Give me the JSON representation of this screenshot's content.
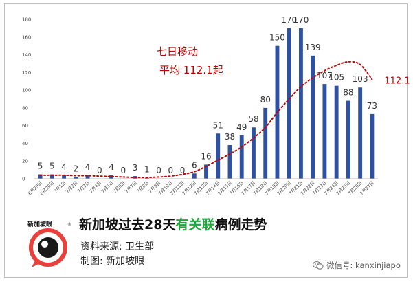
{
  "chart_data": {
    "type": "bar",
    "title": "",
    "xlabel": "",
    "ylabel": "",
    "ylim": [
      0,
      180
    ],
    "y_ticks": [
      "0",
      "20",
      "40",
      "60",
      "80",
      "100",
      "120",
      "140",
      "160",
      "180"
    ],
    "grid": false,
    "categories": [
      "6月29日",
      "6月30日",
      "7月1日",
      "7月2日",
      "7月3日",
      "7月4日",
      "7月5日",
      "7月6日",
      "7月7日",
      "7月8日",
      "7月9日",
      "7月10日",
      "7月11日",
      "7月12日",
      "7月13日",
      "7月14日",
      "7月15日",
      "7月16日",
      "7月17日",
      "7月18日",
      "7月19日",
      "7月20日",
      "7月21日",
      "7月22日",
      "7月23日",
      "7月24日",
      "7月25日",
      "7月26日",
      "7月27日"
    ],
    "values": [
      5,
      5,
      4,
      2,
      4,
      0,
      4,
      0,
      3,
      1,
      0,
      0,
      0,
      6,
      16,
      51,
      38,
      49,
      58,
      80,
      150,
      170,
      170,
      139,
      107,
      105,
      88,
      103,
      73
    ],
    "data_labels": [
      "5",
      "5",
      "4",
      "2",
      "4",
      "0",
      "4",
      "0",
      "3",
      "1",
      "0",
      "0",
      "0",
      "6",
      "16",
      "51",
      "38",
      "49",
      "58",
      "80",
      "150",
      "170",
      "170",
      "139",
      "107",
      "105",
      "88",
      "103",
      "73"
    ],
    "bar_color": "#2e52a0",
    "moving_average": {
      "line_color": "#c00000",
      "style": "dotted",
      "values": [
        4,
        4,
        4,
        3.5,
        3.5,
        3,
        2.5,
        2,
        1.5,
        1.5,
        2,
        3,
        5,
        8,
        14,
        21,
        28,
        36,
        46,
        58,
        75,
        90,
        104,
        114,
        122,
        128,
        132,
        129,
        112.1
      ],
      "end_label": "112.1",
      "note_line1": "七日移动",
      "note_line2": "平均 112.1起"
    }
  },
  "footer": {
    "headline_pre": "新加坡过去28天",
    "headline_accent": "有关联",
    "headline_post": "病例走势",
    "source": "资料来源:  卫生部",
    "credit": "制图:  新加坡眼",
    "wechat": "微信号: kanxinjiapo",
    "accent_color": "#1da83a"
  },
  "logo": {
    "text": "新加坡眼",
    "mark": "®",
    "icon": "eye-bubble-icon",
    "color": "#e8403a"
  }
}
